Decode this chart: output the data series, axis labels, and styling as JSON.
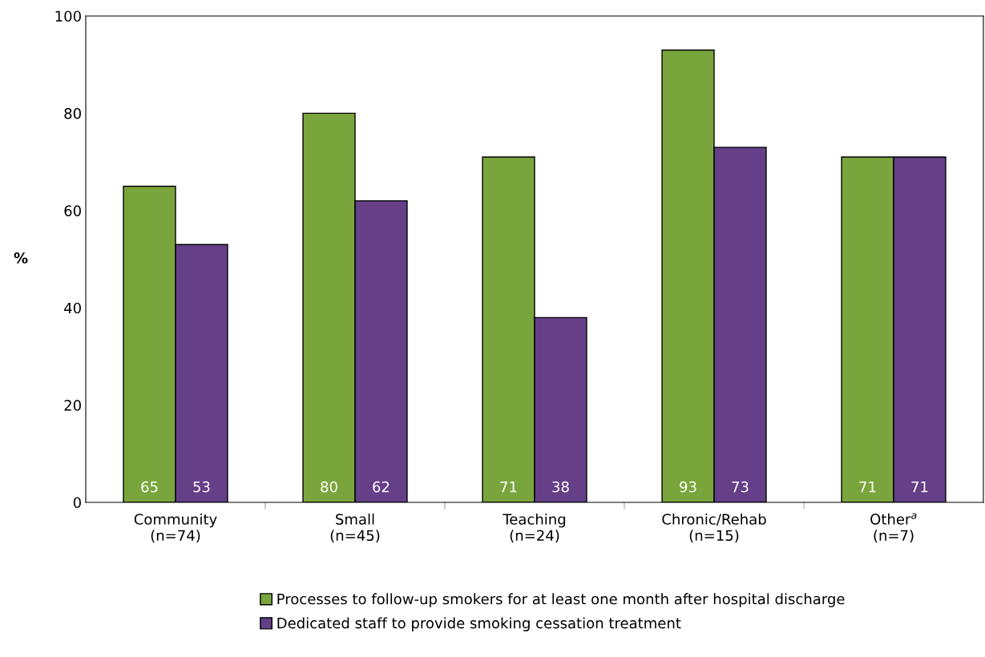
{
  "chart_data": {
    "type": "bar",
    "ylabel": "%",
    "categories": [
      "Community\n(n=74)",
      "Small\n(n=45)",
      "Teaching\n(n=24)",
      "Chronic/Rehab\n(n=15)",
      "Other$^{a}$\n(n=7)"
    ],
    "series": [
      {
        "name": "Processes to follow-up smokers for at least one month after hospital discharge",
        "color": "#7aa53c",
        "values": [
          65,
          80,
          71,
          93,
          71
        ]
      },
      {
        "name": "Dedicated staff to provide smoking cessation treatment",
        "color": "#653f87",
        "values": [
          53,
          62,
          38,
          73,
          71
        ]
      }
    ],
    "ylim": [
      0,
      100
    ],
    "yticks": [
      0,
      20,
      40,
      60,
      80,
      100
    ],
    "data_labels": true,
    "grid": false,
    "legend": "bottom"
  }
}
